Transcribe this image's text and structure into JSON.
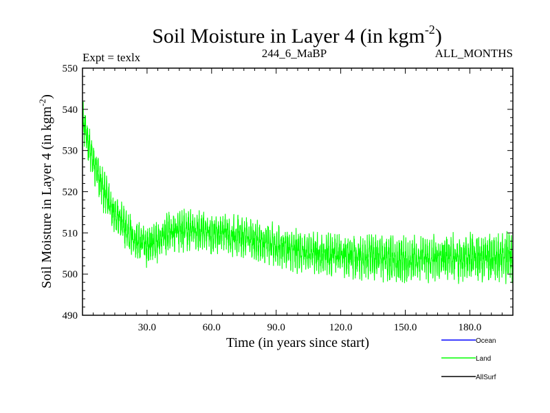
{
  "chart_data": {
    "type": "line",
    "title": "Soil Moisture in Layer 4 (in kgm",
    "title_superscript": "-2",
    "title_suffix": ")",
    "subtitle_left": "Expt = texlx",
    "subtitle_center": "244_6_MaBP",
    "subtitle_right": "ALL_MONTHS",
    "xlabel": "Time (in years since start)",
    "ylabel": "Soil Moisture in Layer 4 (in kgm",
    "ylabel_superscript": "-2",
    "ylabel_suffix": ")",
    "xlim": [
      0,
      200
    ],
    "ylim": [
      490,
      550
    ],
    "x_ticks": [
      30,
      60,
      90,
      120,
      150,
      180
    ],
    "x_tick_labels": [
      "30.0",
      "60.0",
      "90.0",
      "120.0",
      "150.0",
      "180.0"
    ],
    "y_ticks": [
      490,
      500,
      510,
      520,
      530,
      540,
      550
    ],
    "y_tick_labels": [
      "490",
      "500",
      "510",
      "520",
      "530",
      "540",
      "550"
    ],
    "legend": [
      {
        "name": "Ocean",
        "color": "#0000ff"
      },
      {
        "name": "Land",
        "color": "#00ff00"
      },
      {
        "name": "AllSurf",
        "color": "#000000"
      }
    ],
    "series": [
      {
        "name": "Land",
        "color": "#00ff00",
        "sampling": "monthly",
        "trend": {
          "x": [
            0,
            2,
            5,
            10,
            15,
            20,
            25,
            30,
            35,
            40,
            50,
            60,
            70,
            80,
            90,
            100,
            110,
            120,
            130,
            140,
            150,
            160,
            170,
            180,
            190,
            200
          ],
          "y": [
            538,
            533,
            527,
            520,
            515,
            511,
            508,
            507,
            508,
            510,
            510.5,
            510,
            509.5,
            508.5,
            507,
            505.5,
            505,
            504.5,
            504,
            504,
            503.5,
            503.5,
            504,
            504,
            504,
            504
          ]
        },
        "amplitude": {
          "x": [
            0,
            10,
            30,
            60,
            100,
            140,
            200
          ],
          "y": [
            5,
            5,
            5,
            5,
            5,
            5.5,
            6
          ]
        }
      }
    ]
  }
}
